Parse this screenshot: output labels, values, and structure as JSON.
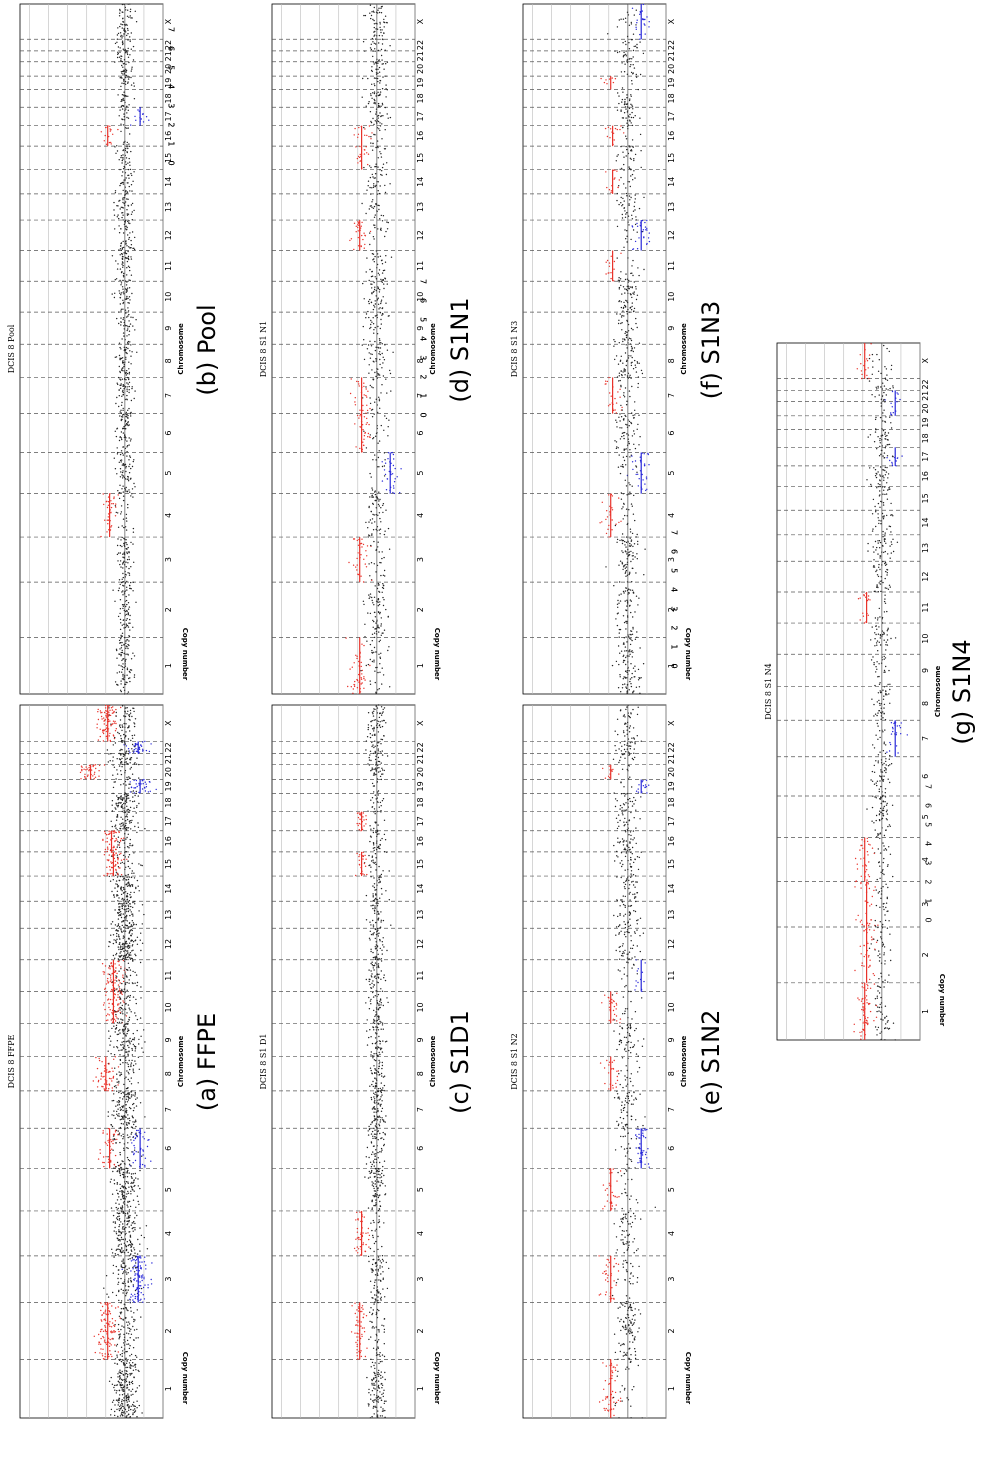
{
  "figure": {
    "panels": [
      {
        "id": "a",
        "title": "DCIS 8 FFPE",
        "caption": "(a) FFPE"
      },
      {
        "id": "b",
        "title": "DCIS 8 Pool",
        "caption": "(b) Pool"
      },
      {
        "id": "c",
        "title": "DCIS 8 S1 D1",
        "caption": "(c) S1D1"
      },
      {
        "id": "d",
        "title": "DCIS 8 S1 N1",
        "caption": "(d) S1N1"
      },
      {
        "id": "e",
        "title": "DCIS 8 S1 N2",
        "caption": "(e) S1N2"
      },
      {
        "id": "f",
        "title": "DCIS 8 S1 N3",
        "caption": "(f) S1N3"
      },
      {
        "id": "g",
        "title": "DCIS 8 S1 N4",
        "caption": "(g) S1N4"
      }
    ]
  },
  "chart_data": [
    {
      "type": "scatter",
      "panel": "a",
      "title": "DCIS 8 FFPE",
      "xlabel": "Chromosome",
      "ylabel": "Copy number",
      "categories": [
        "1",
        "2",
        "3",
        "4",
        "5",
        "6",
        "7",
        "8",
        "9",
        "10",
        "11",
        "12",
        "13",
        "14",
        "15",
        "16",
        "17",
        "18",
        "19",
        "20",
        "21",
        "22",
        "X"
      ],
      "ylim": [
        0,
        7.5
      ],
      "yticks": [
        0,
        1,
        2,
        3,
        4,
        5,
        6,
        7
      ],
      "baseline": 2,
      "series": [
        {
          "color": "#e8332b",
          "segments": [
            {
              "chr": "2",
              "value": 2.9
            },
            {
              "chr": "6",
              "value": 2.8
            },
            {
              "chr": "8",
              "value": 3.0
            },
            {
              "chr": "10",
              "value": 2.6
            },
            {
              "chr": "11",
              "value": 2.6
            },
            {
              "chr": "15",
              "value": 2.6
            },
            {
              "chr": "16",
              "value": 2.7
            },
            {
              "chr": "20",
              "value": 3.8
            },
            {
              "chr": "X",
              "value": 2.9
            }
          ]
        },
        {
          "color": "#2828d8",
          "segments": [
            {
              "chr": "3",
              "value": 1.3
            },
            {
              "chr": "6",
              "value": 1.2
            },
            {
              "chr": "19",
              "value": 1.2
            },
            {
              "chr": "22",
              "value": 1.3
            }
          ]
        }
      ]
    },
    {
      "type": "scatter",
      "panel": "b",
      "title": "DCIS 8 Pool",
      "xlabel": "Chromosome",
      "ylabel": "Copy number",
      "categories": [
        "1",
        "2",
        "3",
        "4",
        "5",
        "6",
        "7",
        "8",
        "9",
        "10",
        "11",
        "12",
        "13",
        "14",
        "15",
        "16",
        "17",
        "18",
        "19",
        "20",
        "21",
        "22",
        "X"
      ],
      "ylim": [
        0,
        7.5
      ],
      "yticks": [
        0,
        1,
        2,
        3,
        4,
        5,
        6,
        7
      ],
      "baseline": 2,
      "series": [
        {
          "color": "#e8332b",
          "segments": [
            {
              "chr": "4",
              "value": 2.8
            },
            {
              "chr": "16",
              "value": 2.9
            }
          ]
        },
        {
          "color": "#2828d8",
          "segments": [
            {
              "chr": "17",
              "value": 1.2
            }
          ]
        }
      ]
    },
    {
      "type": "scatter",
      "panel": "c",
      "title": "DCIS 8 S1 D1",
      "xlabel": "Chromosome",
      "ylabel": "Copy number",
      "categories": [
        "1",
        "2",
        "3",
        "4",
        "5",
        "6",
        "7",
        "8",
        "9",
        "10",
        "11",
        "12",
        "13",
        "14",
        "15",
        "16",
        "17",
        "18",
        "19",
        "20",
        "21",
        "22",
        "X"
      ],
      "ylim": [
        0,
        7.5
      ],
      "yticks": [
        0,
        1,
        2,
        3,
        4,
        5,
        6,
        7
      ],
      "baseline": 2,
      "series": [
        {
          "color": "#e8332b",
          "segments": [
            {
              "chr": "2",
              "value": 2.9
            },
            {
              "chr": "4",
              "value": 2.8
            },
            {
              "chr": "15",
              "value": 2.8
            },
            {
              "chr": "17",
              "value": 2.8
            }
          ]
        }
      ]
    },
    {
      "type": "scatter",
      "panel": "d",
      "title": "DCIS 8 S1 N1",
      "xlabel": "Chromosome",
      "ylabel": "Copy number",
      "categories": [
        "1",
        "2",
        "3",
        "4",
        "5",
        "6",
        "7",
        "8",
        "9",
        "10",
        "11",
        "12",
        "13",
        "14",
        "15",
        "16",
        "17",
        "18",
        "19",
        "20",
        "21",
        "22",
        "X"
      ],
      "ylim": [
        0,
        7.5
      ],
      "yticks": [
        0,
        1,
        2,
        3,
        4,
        5,
        6,
        7
      ],
      "baseline": 2,
      "series": [
        {
          "color": "#e8332b",
          "segments": [
            {
              "chr": "1",
              "value": 2.9
            },
            {
              "chr": "3",
              "value": 2.9
            },
            {
              "chr": "6",
              "value": 2.8
            },
            {
              "chr": "7",
              "value": 2.8
            },
            {
              "chr": "12",
              "value": 2.9
            },
            {
              "chr": "15",
              "value": 2.8
            },
            {
              "chr": "16",
              "value": 2.8
            }
          ]
        },
        {
          "color": "#2828d8",
          "segments": [
            {
              "chr": "5",
              "value": 1.3
            }
          ]
        }
      ]
    },
    {
      "type": "scatter",
      "panel": "e",
      "title": "DCIS 8 S1 N2",
      "xlabel": "Chromosome",
      "ylabel": "Copy number",
      "categories": [
        "1",
        "2",
        "3",
        "4",
        "5",
        "6",
        "7",
        "8",
        "9",
        "10",
        "11",
        "12",
        "13",
        "14",
        "15",
        "16",
        "17",
        "18",
        "19",
        "20",
        "21",
        "22",
        "X"
      ],
      "ylim": [
        0,
        7.5
      ],
      "yticks": [
        0,
        1,
        2,
        3,
        4,
        5,
        6,
        7
      ],
      "baseline": 2,
      "series": [
        {
          "color": "#e8332b",
          "segments": [
            {
              "chr": "1",
              "value": 2.9
            },
            {
              "chr": "3",
              "value": 2.9
            },
            {
              "chr": "5",
              "value": 2.9
            },
            {
              "chr": "8",
              "value": 2.9
            },
            {
              "chr": "10",
              "value": 2.9
            },
            {
              "chr": "20",
              "value": 2.9
            }
          ]
        },
        {
          "color": "#2828d8",
          "segments": [
            {
              "chr": "6",
              "value": 1.3
            },
            {
              "chr": "11",
              "value": 1.3
            },
            {
              "chr": "19",
              "value": 1.3
            }
          ]
        }
      ]
    },
    {
      "type": "scatter",
      "panel": "f",
      "title": "DCIS 8 S1 N3",
      "xlabel": "Chromosome",
      "ylabel": "Copy number",
      "categories": [
        "1",
        "2",
        "3",
        "4",
        "5",
        "6",
        "7",
        "8",
        "9",
        "10",
        "11",
        "12",
        "13",
        "14",
        "15",
        "16",
        "17",
        "18",
        "19",
        "20",
        "21",
        "22",
        "X"
      ],
      "ylim": [
        0,
        7.5
      ],
      "yticks": [
        0,
        1,
        2,
        3,
        4,
        5,
        6,
        7
      ],
      "baseline": 2,
      "series": [
        {
          "color": "#e8332b",
          "segments": [
            {
              "chr": "4",
              "value": 2.9
            },
            {
              "chr": "7",
              "value": 2.8
            },
            {
              "chr": "11",
              "value": 2.8
            },
            {
              "chr": "14",
              "value": 2.8
            },
            {
              "chr": "16",
              "value": 2.8
            },
            {
              "chr": "19",
              "value": 2.9
            }
          ]
        },
        {
          "color": "#2828d8",
          "segments": [
            {
              "chr": "5",
              "value": 1.3
            },
            {
              "chr": "12",
              "value": 1.3
            },
            {
              "chr": "X",
              "value": 1.3
            }
          ]
        }
      ]
    },
    {
      "type": "scatter",
      "panel": "g",
      "title": "DCIS 8 S1 N4",
      "xlabel": "Chromosome",
      "ylabel": "Copy number",
      "categories": [
        "1",
        "2",
        "3",
        "4",
        "5",
        "6",
        "7",
        "8",
        "9",
        "10",
        "11",
        "12",
        "13",
        "14",
        "15",
        "16",
        "17",
        "18",
        "19",
        "20",
        "21",
        "22",
        "X"
      ],
      "ylim": [
        0,
        7.5
      ],
      "yticks": [
        0,
        1,
        2,
        3,
        4,
        5,
        6,
        7
      ],
      "baseline": 2,
      "series": [
        {
          "color": "#e8332b",
          "segments": [
            {
              "chr": "1",
              "value": 2.9
            },
            {
              "chr": "2",
              "value": 2.8
            },
            {
              "chr": "3",
              "value": 2.8
            },
            {
              "chr": "4",
              "value": 2.9
            },
            {
              "chr": "11",
              "value": 2.8
            },
            {
              "chr": "X",
              "value": 2.9
            }
          ]
        },
        {
          "color": "#2828d8",
          "segments": [
            {
              "chr": "7",
              "value": 1.3
            },
            {
              "chr": "17",
              "value": 1.3
            },
            {
              "chr": "20",
              "value": 1.3
            },
            {
              "chr": "21",
              "value": 1.3
            }
          ]
        }
      ]
    }
  ]
}
